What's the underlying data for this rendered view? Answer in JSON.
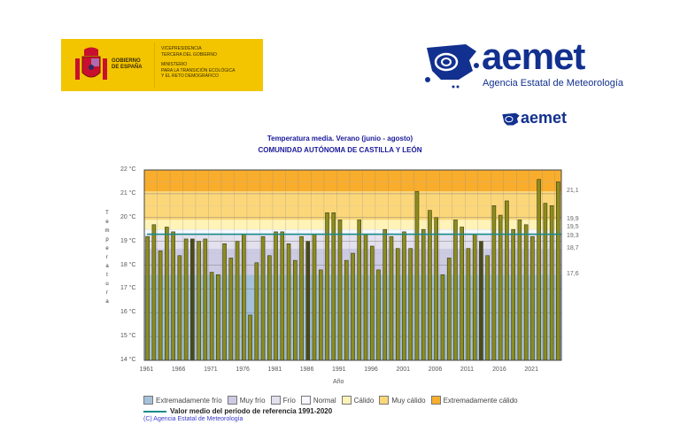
{
  "header": {
    "gobierno": {
      "name_lines": [
        "GOBIERNO",
        "DE ESPAÑA"
      ],
      "ministry_lines": [
        "VICEPRESIDENCIA",
        "TERCERA DEL GOBIERNO",
        "",
        "MINISTERIO",
        "PARA LA TRANSICIÓN ECOLÓGICA",
        "Y EL RETO DEMOGRÁFICO"
      ],
      "color": "#f2c500"
    },
    "aemet": {
      "word": "aemet",
      "subtitle": "Agencia Estatal de Meteorología",
      "color": "#12308f"
    }
  },
  "chart_data": {
    "type": "bar",
    "title": "Temperatura media. Verano (junio - agosto)",
    "subtitle": "COMUNIDAD AUTÓNOMA DE CASTILLA Y LEÓN",
    "xlabel": "Año",
    "ylabel": "Temperatura",
    "ylim": [
      14,
      22
    ],
    "y_ticks": [
      "14 °C",
      "15 °C",
      "16 °C",
      "17 °C",
      "18 °C",
      "19 °C",
      "20 °C",
      "21 °C",
      "22 °C"
    ],
    "x_ticks": [
      "1961",
      "1966",
      "1971",
      "1976",
      "1981",
      "1986",
      "1991",
      "1996",
      "2001",
      "2006",
      "2011",
      "2016",
      "2021"
    ],
    "grid": true,
    "years": [
      1961,
      1962,
      1963,
      1964,
      1965,
      1966,
      1967,
      1968,
      1969,
      1970,
      1971,
      1972,
      1973,
      1974,
      1975,
      1976,
      1977,
      1978,
      1979,
      1980,
      1981,
      1982,
      1983,
      1984,
      1985,
      1986,
      1987,
      1988,
      1989,
      1990,
      1991,
      1992,
      1993,
      1994,
      1995,
      1996,
      1997,
      1998,
      1999,
      2000,
      2001,
      2002,
      2003,
      2004,
      2005,
      2006,
      2007,
      2008,
      2009,
      2010,
      2011,
      2012,
      2013,
      2014,
      2015,
      2016,
      2017,
      2018,
      2019,
      2020,
      2021,
      2022,
      2023,
      2024,
      2025
    ],
    "values": [
      19.2,
      19.7,
      18.6,
      19.6,
      19.4,
      18.4,
      19.1,
      19.1,
      19.0,
      19.1,
      17.7,
      17.6,
      18.9,
      18.3,
      19.0,
      19.3,
      15.9,
      18.1,
      19.2,
      18.4,
      19.4,
      19.4,
      18.9,
      18.2,
      19.2,
      19.0,
      19.3,
      17.8,
      20.2,
      20.2,
      19.9,
      18.2,
      18.5,
      19.9,
      19.3,
      18.8,
      17.8,
      19.5,
      19.2,
      18.7,
      19.4,
      18.7,
      21.1,
      19.5,
      20.3,
      20.0,
      17.6,
      18.3,
      19.9,
      19.6,
      18.7,
      19.3,
      19.0,
      18.4,
      20.5,
      20.1,
      20.7,
      19.5,
      19.9,
      19.7,
      19.2,
      21.6,
      20.6,
      20.5,
      21.5
    ],
    "dark_bars": [
      1968,
      1986,
      2013
    ],
    "bar_color": "#8c8c1e",
    "dark_bar_color": "#4a4a1c",
    "thresholds": [
      "21,1",
      "19,9",
      "19,5",
      "19,3",
      "18,7",
      "17,6"
    ],
    "reference_mean": 19.3,
    "reference_color": "#1a8a8a",
    "bands": [
      {
        "name": "Extremadamente frío",
        "from": 14,
        "to": 17.6,
        "color": "#a4c2dc"
      },
      {
        "name": "Muy frío",
        "from": 17.6,
        "to": 18.7,
        "color": "#cdcbe4"
      },
      {
        "name": "Frío",
        "from": 18.7,
        "to": 19.3,
        "color": "#e4e1ee"
      },
      {
        "name": "Normal",
        "from": 19.3,
        "to": 19.5,
        "color": "#f6f9ff"
      },
      {
        "name": "Cálido",
        "from": 19.5,
        "to": 19.9,
        "color": "#fff3b8"
      },
      {
        "name": "Muy cálido",
        "from": 19.9,
        "to": 21.1,
        "color": "#fcd77a"
      },
      {
        "name": "Extremadamente cálido",
        "from": 21.1,
        "to": 22,
        "color": "#f8ad2c"
      }
    ],
    "reference_label": "Valor medio del periodo de referencia 1991-2020",
    "credit": "(C) Agencia Estatal de Meteorología"
  }
}
